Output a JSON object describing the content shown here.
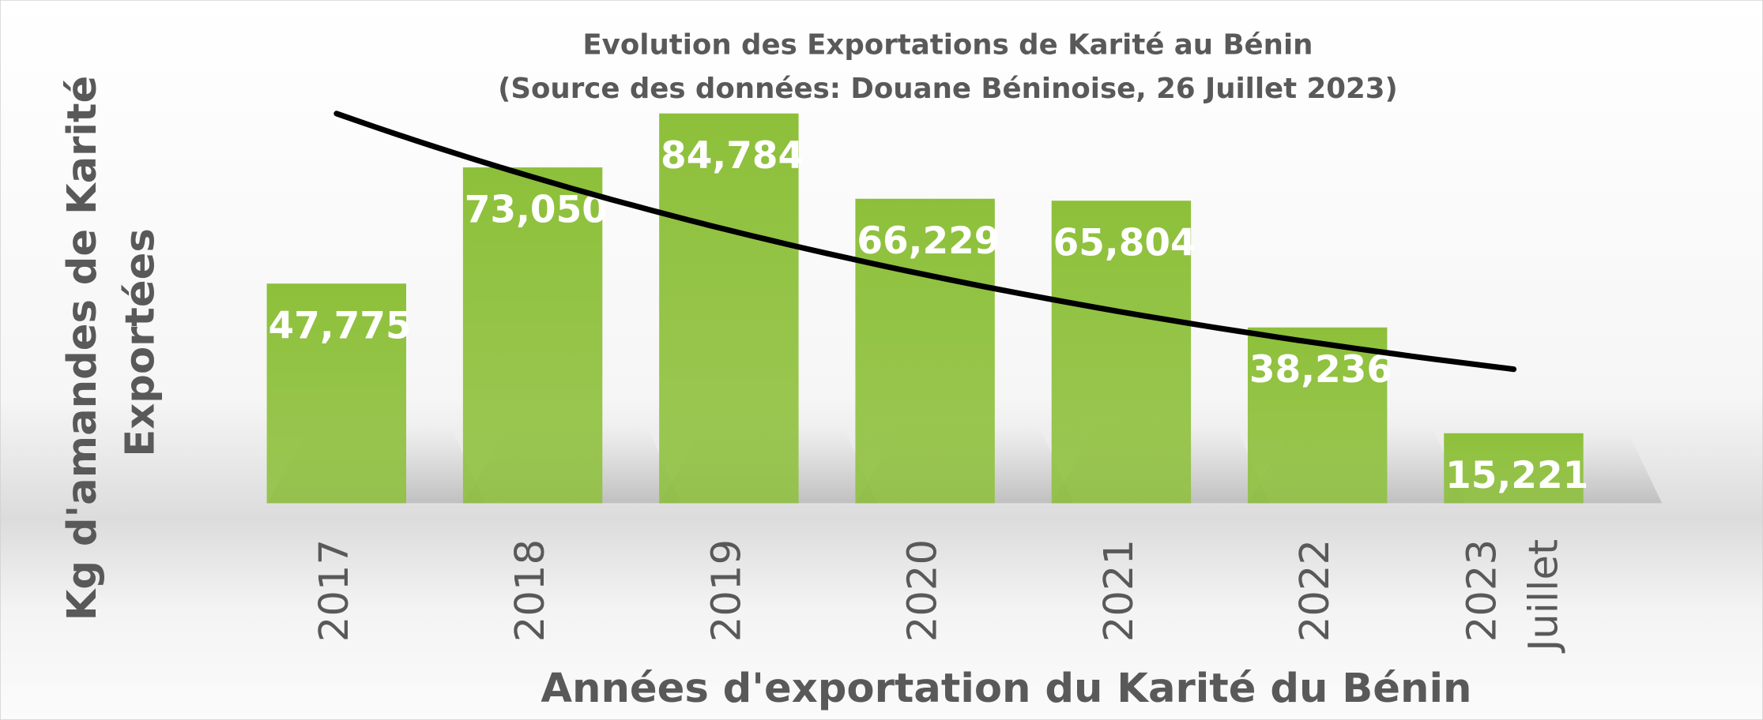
{
  "chart_data": {
    "type": "bar",
    "title": "Evolution des Exportations de Karité au Bénin",
    "subtitle": "(Source des données: Douane Béninoise, 26 Juillet 2023)",
    "x_label": "Années d'exportation du Karité du Bénin",
    "y_label": [
      "Kg d'amandes de Karité",
      "Exportées"
    ],
    "categories": [
      "2017",
      "2018",
      "2019",
      "2020",
      "2021",
      "2022",
      "2023 Juillet"
    ],
    "values": [
      47775,
      73050,
      84784,
      66229,
      65804,
      38236,
      15221
    ],
    "value_labels": [
      "47,775",
      "73,050",
      "84,784",
      "66,229",
      "65,804",
      "38,236",
      "15,221"
    ],
    "color": "#8dc03a",
    "trendline": "exponential"
  }
}
